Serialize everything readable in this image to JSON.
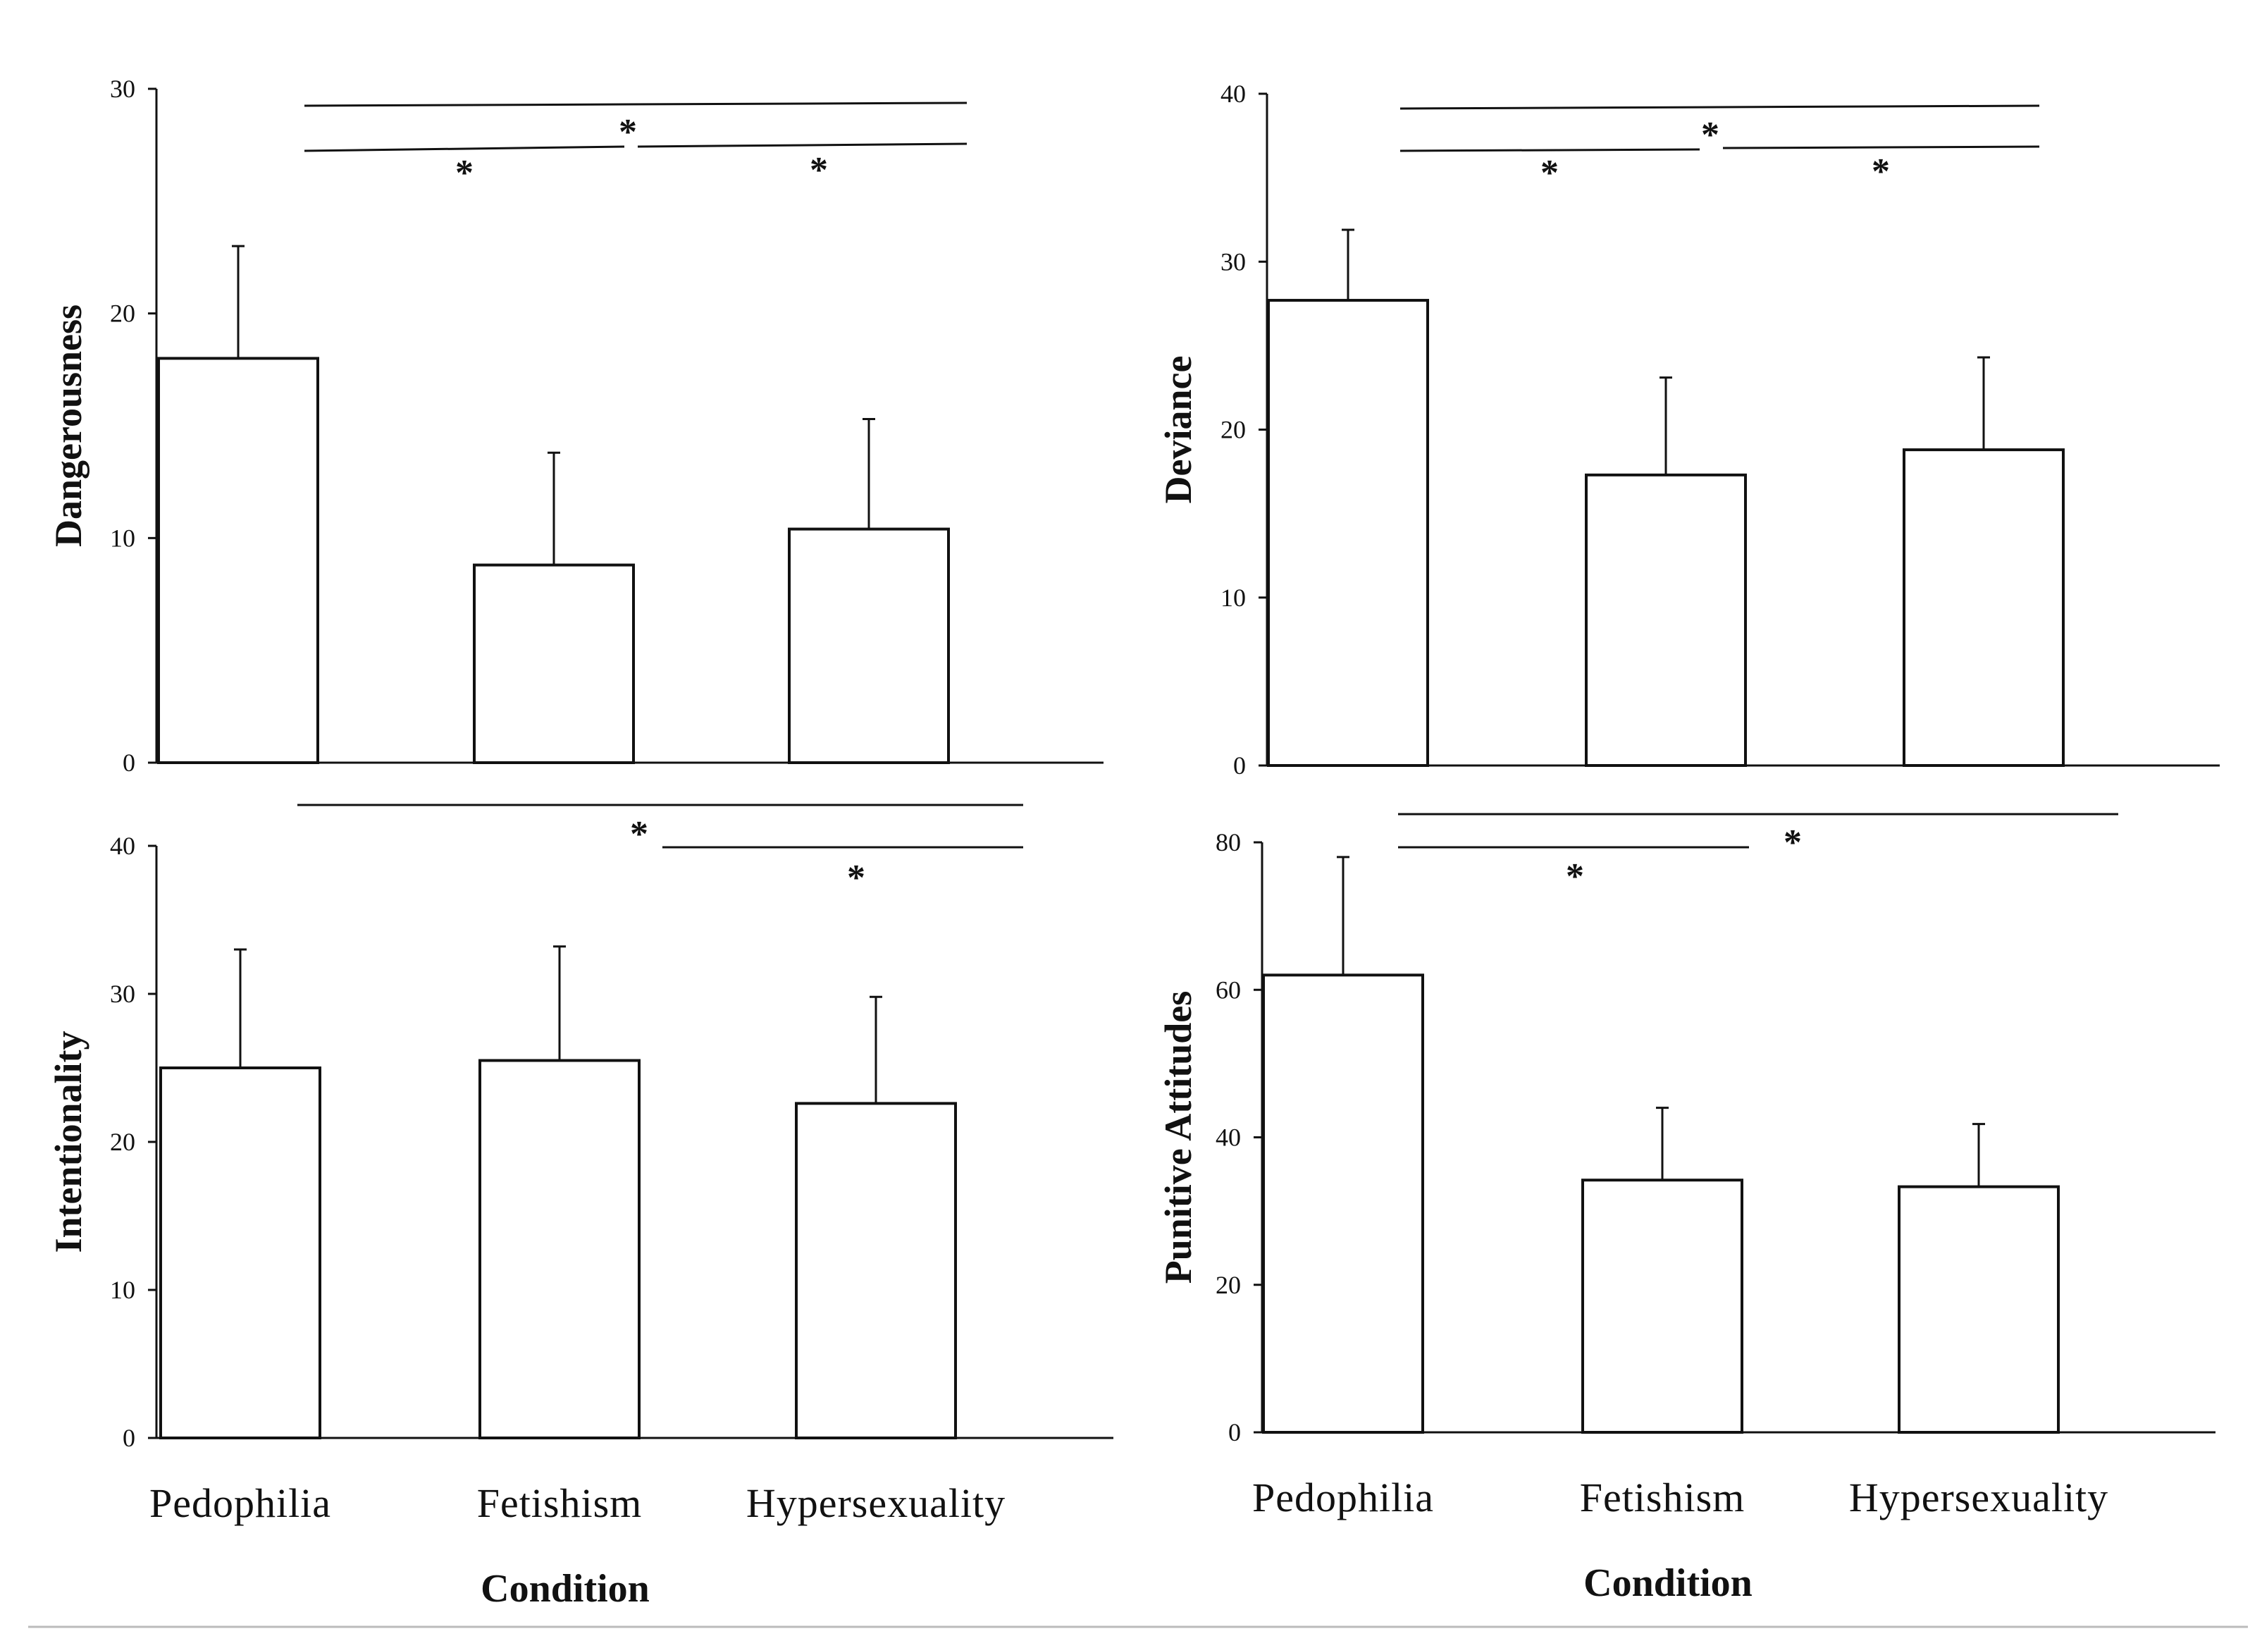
{
  "chart_data": [
    {
      "type": "bar",
      "ylabel": "Dangerousness",
      "xlabel": "",
      "ylim": [
        0,
        30
      ],
      "yticks": [
        0,
        10,
        20,
        30
      ],
      "categories": [
        "Pedophilia",
        "Fetishism",
        "Hypersexuality"
      ],
      "values": [
        18,
        8.8,
        10.4
      ],
      "error_upper": [
        23,
        13.8,
        15.3
      ],
      "significance": [
        {
          "label": "*",
          "from": "Pedophilia",
          "to": "Fetishism"
        },
        {
          "label": "*",
          "from": "Fetishism",
          "to": "Hypersexuality"
        },
        {
          "label": "*",
          "from": "Pedophilia",
          "to": "Hypersexuality"
        }
      ]
    },
    {
      "type": "bar",
      "ylabel": "Deviance",
      "xlabel": "",
      "ylim": [
        0,
        40
      ],
      "yticks": [
        0,
        10,
        20,
        30,
        40
      ],
      "categories": [
        "Pedophilia",
        "Fetishism",
        "Hypersexuality"
      ],
      "values": [
        27.7,
        17.3,
        18.8
      ],
      "error_upper": [
        31.9,
        23.1,
        24.3
      ],
      "significance": [
        {
          "label": "*",
          "from": "Pedophilia",
          "to": "Fetishism"
        },
        {
          "label": "*",
          "from": "Fetishism",
          "to": "Hypersexuality"
        },
        {
          "label": "*",
          "from": "Pedophilia",
          "to": "Hypersexuality"
        }
      ]
    },
    {
      "type": "bar",
      "ylabel": "Intentionality",
      "xlabel": "Condition",
      "ylim": [
        0,
        40
      ],
      "yticks": [
        0,
        10,
        20,
        30,
        40
      ],
      "categories": [
        "Pedophilia",
        "Fetishism",
        "Hypersexuality"
      ],
      "values": [
        25,
        25.5,
        22.6
      ],
      "error_upper": [
        33,
        33.2,
        29.8
      ],
      "significance": [
        {
          "label": "*",
          "from": "Pedophilia",
          "to": "Hypersexuality"
        },
        {
          "label": "*",
          "from": "Fetishism",
          "to": "Hypersexuality"
        }
      ]
    },
    {
      "type": "bar",
      "ylabel": "Punitive Attitudes",
      "xlabel": "Condition",
      "ylim": [
        0,
        80
      ],
      "yticks": [
        0,
        20,
        40,
        60,
        80
      ],
      "categories": [
        "Pedophilia",
        "Fetishism",
        "Hypersexuality"
      ],
      "values": [
        62,
        34.2,
        33.3
      ],
      "error_upper": [
        78,
        44,
        41.8
      ],
      "significance": [
        {
          "label": "*",
          "from": "Pedophilia",
          "to": "Fetishism"
        },
        {
          "label": "*",
          "from": "Pedophilia",
          "to": "Hypersexuality"
        }
      ]
    }
  ]
}
